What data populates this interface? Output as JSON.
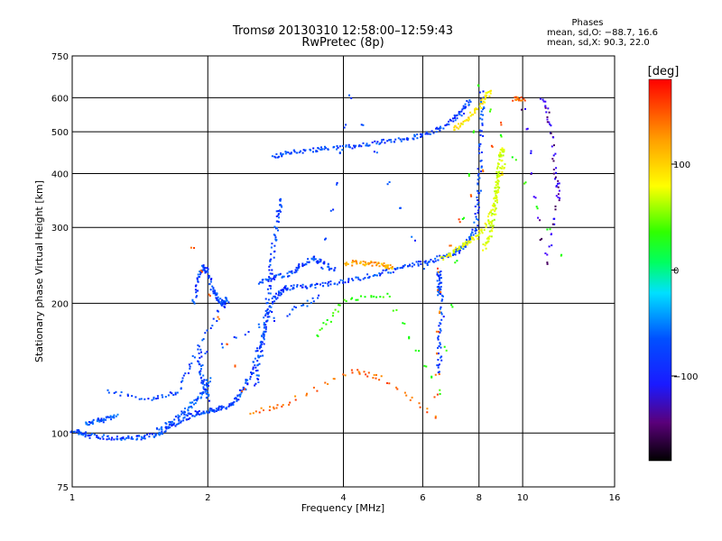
{
  "header": {
    "title_line1": "Tromsø 20130310 12:58:00–12:59:43",
    "title_line2": "RwPretec (8p)",
    "phases_title": "Phases",
    "phases_o": "mean, sd,O: −88.7, 16.6",
    "phases_x": "mean, sd,X:  90.3, 22.0"
  },
  "colorbar": {
    "unit": "[deg]",
    "ticks": [
      {
        "value": 100,
        "label": "100"
      },
      {
        "value": 0,
        "label": "0"
      },
      {
        "value": -100,
        "label": "−100"
      }
    ],
    "range": [
      -180,
      180
    ]
  },
  "chart_data": {
    "type": "scatter",
    "title": "Tromsø 20130310 12:58:00–12:59:43",
    "subtitle": "RwPretec (8p)",
    "xlabel": "Frequency [MHz]",
    "ylabel": "Stationary phase Virtual Height [km]",
    "xscale": "log",
    "yscale": "log",
    "xlim": [
      1,
      16
    ],
    "ylim": [
      75,
      750
    ],
    "grid": true,
    "x_ticks": [
      {
        "value": 1,
        "label": "1"
      },
      {
        "value": 2,
        "label": "2"
      },
      {
        "value": 4,
        "label": "4"
      },
      {
        "value": 6,
        "label": "6"
      },
      {
        "value": 8,
        "label": "8"
      },
      {
        "value": 10,
        "label": "10"
      },
      {
        "value": 16,
        "label": "16"
      }
    ],
    "y_ticks": [
      {
        "value": 75,
        "label": "75"
      },
      {
        "value": 100,
        "label": "100"
      },
      {
        "value": 200,
        "label": "200"
      },
      {
        "value": 300,
        "label": "300"
      },
      {
        "value": 400,
        "label": "400"
      },
      {
        "value": 500,
        "label": "500"
      },
      {
        "value": 600,
        "label": "600"
      },
      {
        "value": 750,
        "label": "750"
      }
    ],
    "traces": [
      {
        "phase": -100,
        "points": [
          [
            1.0,
            102
          ],
          [
            1.05,
            100
          ],
          [
            1.1,
            99
          ],
          [
            1.2,
            98
          ],
          [
            1.3,
            98
          ],
          [
            1.4,
            98
          ],
          [
            1.5,
            99
          ],
          [
            1.6,
            102
          ],
          [
            1.7,
            106
          ],
          [
            1.8,
            110
          ],
          [
            1.9,
            112
          ],
          [
            2.0,
            113
          ],
          [
            2.1,
            114
          ],
          [
            2.2,
            116
          ],
          [
            2.3,
            120
          ],
          [
            2.4,
            128
          ],
          [
            2.5,
            140
          ],
          [
            2.6,
            160
          ],
          [
            2.7,
            185
          ],
          [
            2.8,
            205
          ],
          [
            2.9,
            215
          ],
          [
            3.0,
            218
          ],
          [
            3.3,
            220
          ],
          [
            3.6,
            222
          ],
          [
            4.0,
            226
          ],
          [
            4.5,
            232
          ],
          [
            5.0,
            238
          ],
          [
            5.5,
            245
          ],
          [
            6.0,
            250
          ],
          [
            6.5,
            256
          ],
          [
            7.0,
            262
          ],
          [
            7.3,
            270
          ],
          [
            7.6,
            282
          ],
          [
            7.8,
            300
          ],
          [
            7.95,
            350
          ],
          [
            8.0,
            420
          ],
          [
            8.05,
            520
          ],
          [
            8.1,
            620
          ]
        ]
      },
      {
        "phase": -100,
        "points": [
          [
            2.8,
            440
          ],
          [
            3.0,
            450
          ],
          [
            3.3,
            455
          ],
          [
            3.6,
            458
          ],
          [
            4.0,
            462
          ],
          [
            4.5,
            470
          ],
          [
            5.0,
            478
          ],
          [
            5.5,
            485
          ],
          [
            6.0,
            495
          ],
          [
            6.5,
            510
          ],
          [
            7.0,
            535
          ],
          [
            7.3,
            560
          ],
          [
            7.6,
            590
          ]
        ]
      },
      {
        "phase": -95,
        "points": [
          [
            1.07,
            106
          ],
          [
            1.12,
            107
          ],
          [
            1.18,
            108
          ],
          [
            1.25,
            110
          ]
        ]
      },
      {
        "phase": -95,
        "points": [
          [
            1.55,
            102
          ],
          [
            1.65,
            106
          ],
          [
            1.75,
            112
          ],
          [
            1.85,
            118
          ],
          [
            1.95,
            125
          ],
          [
            2.0,
            135
          ]
        ]
      },
      {
        "phase": -100,
        "points": [
          [
            1.85,
            200
          ],
          [
            1.9,
            230
          ],
          [
            1.95,
            245
          ],
          [
            2.0,
            235
          ],
          [
            2.05,
            215
          ],
          [
            2.1,
            205
          ],
          [
            2.15,
            200
          ],
          [
            2.2,
            205
          ],
          [
            1.9,
            160
          ],
          [
            1.92,
            140
          ],
          [
            1.95,
            130
          ],
          [
            2.0,
            120
          ]
        ]
      },
      {
        "phase": -100,
        "points": [
          [
            2.55,
            130
          ],
          [
            2.6,
            150
          ],
          [
            2.65,
            170
          ],
          [
            2.7,
            200
          ],
          [
            2.75,
            240
          ],
          [
            2.8,
            280
          ],
          [
            2.85,
            320
          ],
          [
            2.9,
            350
          ]
        ]
      },
      {
        "phase": -100,
        "points": [
          [
            2.6,
            225
          ],
          [
            2.8,
            230
          ],
          [
            3.0,
            235
          ],
          [
            3.2,
            245
          ],
          [
            3.4,
            255
          ],
          [
            3.6,
            250
          ],
          [
            3.8,
            240
          ]
        ]
      },
      {
        "phase": 130,
        "points": [
          [
            4.0,
            248
          ],
          [
            4.3,
            250
          ],
          [
            4.6,
            248
          ],
          [
            4.9,
            246
          ],
          [
            5.1,
            244
          ]
        ]
      },
      {
        "phase": 100,
        "points": [
          [
            6.6,
            255
          ],
          [
            7.0,
            265
          ],
          [
            7.4,
            275
          ],
          [
            7.8,
            285
          ],
          [
            8.2,
            300
          ],
          [
            8.6,
            340
          ],
          [
            8.8,
            380
          ],
          [
            9.0,
            420
          ]
        ]
      },
      {
        "phase": 90,
        "points": [
          [
            8.2,
            270
          ],
          [
            8.4,
            290
          ],
          [
            8.6,
            320
          ],
          [
            8.7,
            360
          ],
          [
            8.8,
            400
          ],
          [
            8.9,
            440
          ],
          [
            9.0,
            460
          ]
        ]
      },
      {
        "phase": 110,
        "points": [
          [
            7.0,
            510
          ],
          [
            7.4,
            530
          ],
          [
            7.8,
            560
          ],
          [
            8.2,
            600
          ],
          [
            8.4,
            625
          ]
        ]
      },
      {
        "phase": -100,
        "points": [
          [
            1.2,
            125
          ],
          [
            1.5,
            120
          ],
          [
            1.7,
            125
          ],
          [
            1.85,
            150
          ],
          [
            3.0,
            190
          ],
          [
            3.5,
            208
          ],
          [
            4.1,
            605
          ],
          [
            6.5,
            210
          ],
          [
            6.5,
            220
          ],
          [
            6.5,
            240
          ],
          [
            6.6,
            190
          ],
          [
            6.5,
            160
          ],
          [
            6.5,
            140
          ]
        ]
      },
      {
        "phase": 150,
        "points": [
          [
            1.85,
            270
          ],
          [
            2.5,
            112
          ],
          [
            3.0,
            118
          ],
          [
            4.2,
            140
          ],
          [
            4.8,
            135
          ],
          [
            6.4,
            110
          ],
          [
            6.5,
            240
          ],
          [
            9.5,
            600
          ],
          [
            10.0,
            600
          ]
        ]
      },
      {
        "phase": 40,
        "points": [
          [
            3.5,
            170
          ],
          [
            4.0,
            205
          ],
          [
            5.0,
            210
          ],
          [
            6.5,
            125
          ],
          [
            8.0,
            640
          ],
          [
            12.0,
            260
          ]
        ]
      },
      {
        "phase": -140,
        "points": [
          [
            11.0,
            600
          ],
          [
            11.5,
            520
          ],
          [
            11.8,
            400
          ],
          [
            12.0,
            350
          ],
          [
            11.2,
            250
          ],
          [
            10.0,
            570
          ]
        ]
      }
    ]
  }
}
